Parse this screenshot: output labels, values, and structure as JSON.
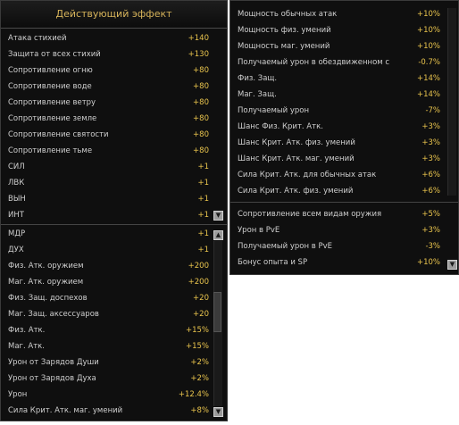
{
  "left_panel": {
    "title": "Действующий эффект",
    "top_list": [
      {
        "label": "Атака стихией",
        "value": "+140"
      },
      {
        "label": "Защита от всех стихий",
        "value": "+130"
      },
      {
        "label": "Сопротивление огню",
        "value": "+80"
      },
      {
        "label": "Сопротивление воде",
        "value": "+80"
      },
      {
        "label": "Сопротивление ветру",
        "value": "+80"
      },
      {
        "label": "Сопротивление земле",
        "value": "+80"
      },
      {
        "label": "Сопротивление святости",
        "value": "+80"
      },
      {
        "label": "Сопротивление тьме",
        "value": "+80"
      },
      {
        "label": "СИЛ",
        "value": "+1"
      },
      {
        "label": "ЛВК",
        "value": "+1"
      },
      {
        "label": "ВЫН",
        "value": "+1"
      },
      {
        "label": "ИНТ",
        "value": "+1"
      }
    ],
    "bottom_list": [
      {
        "label": "МДР",
        "value": "+1"
      },
      {
        "label": "ДУХ",
        "value": "+1"
      },
      {
        "label": "Физ. Атк. оружием",
        "value": "+200"
      },
      {
        "label": "Маг. Атк. оружием",
        "value": "+200"
      },
      {
        "label": "Физ. Защ. доспехов",
        "value": "+20"
      },
      {
        "label": "Маг. Защ. аксессуаров",
        "value": "+20"
      },
      {
        "label": "Физ. Атк.",
        "value": "+15%"
      },
      {
        "label": "Маг. Атк.",
        "value": "+15%"
      },
      {
        "label": "Урон от Зарядов Души",
        "value": "+2%"
      },
      {
        "label": "Урон от Зарядов Духа",
        "value": "+2%"
      },
      {
        "label": "Урон",
        "value": "+12.4%"
      },
      {
        "label": "Сила Крит. Атк. маг. умений",
        "value": "+8%"
      }
    ],
    "arrow_down": "▼",
    "arrow_up": "▲"
  },
  "right_panel": {
    "top_list": [
      {
        "label": "Мощность обычных атак",
        "value": "+10%"
      },
      {
        "label": "Мощность физ. умений",
        "value": "+10%"
      },
      {
        "label": "Мощность маг. умений",
        "value": "+10%"
      },
      {
        "label": "Получаемый урон в обездвиженном со",
        "value": "-0.7%"
      },
      {
        "label": "Физ. Защ.",
        "value": "+14%"
      },
      {
        "label": "Маг. Защ.",
        "value": "+14%"
      },
      {
        "label": "Получаемый урон",
        "value": "-7%"
      },
      {
        "label": "Шанс Физ. Крит. Атк.",
        "value": "+3%"
      },
      {
        "label": "Шанс Крит. Атк. физ. умений",
        "value": "+3%"
      },
      {
        "label": "Шанс Крит. Атк. маг. умений",
        "value": "+3%"
      },
      {
        "label": "Сила Крит. Атк. для обычных атак",
        "value": "+6%"
      },
      {
        "label": "Сила Крит. Атк. физ. умений",
        "value": "+6%"
      }
    ],
    "bottom_list": [
      {
        "label": "Сопротивление всем видам оружия",
        "value": "+5%"
      },
      {
        "label": "Урон в PvE",
        "value": "+3%"
      },
      {
        "label": "Получаемый урон в PvE",
        "value": "-3%"
      },
      {
        "label": "Бонус опыта и SP",
        "value": "+10%"
      }
    ],
    "arrow_down": "▼"
  }
}
